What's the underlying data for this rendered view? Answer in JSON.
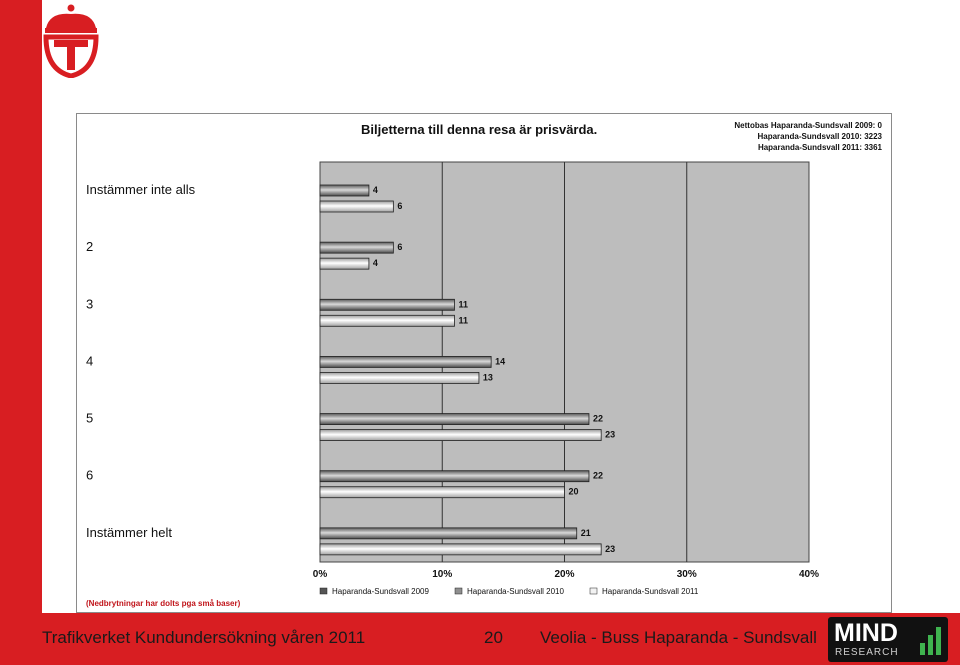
{
  "slide": {
    "footer_left": "Trafikverket Kundundersökning våren 2011",
    "page_number": "20",
    "footer_right": "Veolia - Buss Haparanda - Sundsvall",
    "mind_word": "MIND",
    "mind_sub": "RESEARCH",
    "colors": {
      "accent_red": "#d81e22",
      "plot_bg": "#bdbdbd",
      "series_2009": "#555555",
      "series_2010": "#8f8f8f",
      "series_2011": "#f2f2f2"
    }
  },
  "chart_data": {
    "type": "bar",
    "orientation": "horizontal",
    "title": "Biljetterna till denna resa är prisvärda.",
    "net_base": [
      "Nettobas  Haparanda-Sundsvall 2009: 0",
      "Haparanda-Sundsvall 2010: 3223",
      "Haparanda-Sundsvall 2011: 3361"
    ],
    "categories": [
      "Instämmer inte alls",
      "2",
      "3",
      "4",
      "5",
      "6",
      "Instämmer helt"
    ],
    "series": [
      {
        "name": "Haparanda-Sundsvall 2009",
        "values": [
          null,
          null,
          null,
          null,
          null,
          null,
          null
        ]
      },
      {
        "name": "Haparanda-Sundsvall 2010",
        "values": [
          4,
          6,
          11,
          14,
          22,
          22,
          21
        ]
      },
      {
        "name": "Haparanda-Sundsvall 2011",
        "values": [
          6,
          4,
          11,
          13,
          23,
          20,
          23
        ]
      }
    ],
    "xlim": [
      0,
      40
    ],
    "xticks": [
      "0%",
      "10%",
      "20%",
      "30%",
      "40%"
    ],
    "note": "(Nedbrytningar har dolts pga små baser)",
    "legend_position": "bottom",
    "grid": true
  }
}
